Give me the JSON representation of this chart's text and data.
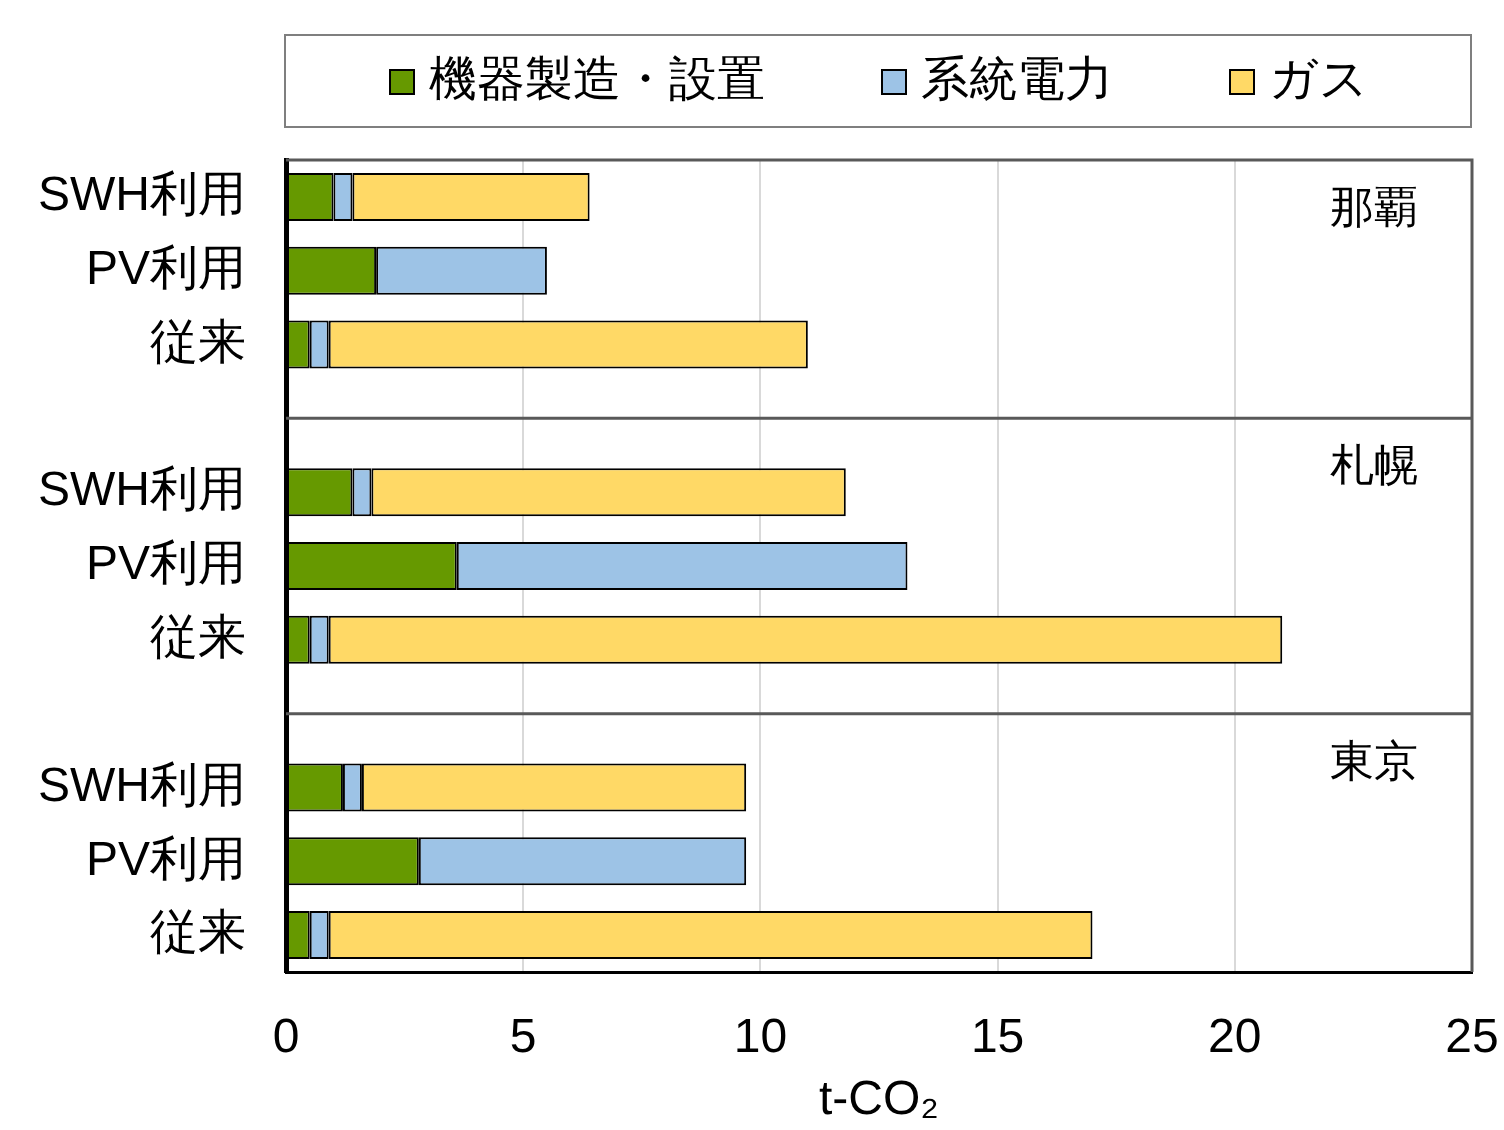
{
  "chart_data": {
    "type": "bar",
    "orientation": "horizontal",
    "stacked": true,
    "categories": [
      "SWH利用",
      "PV利用",
      "従来",
      null,
      "SWH利用",
      "PV利用",
      "従来",
      null,
      "SWH利用",
      "PV利用",
      "従来"
    ],
    "series": [
      {
        "name": "機器製造・設置",
        "color": "#669900",
        "values": [
          1.0,
          1.9,
          0.5,
          null,
          1.4,
          3.6,
          0.5,
          null,
          1.2,
          2.8,
          0.5
        ]
      },
      {
        "name": "系統電力",
        "color": "#9dc3e6",
        "values": [
          0.4,
          3.6,
          0.4,
          null,
          0.4,
          9.5,
          0.4,
          null,
          0.4,
          6.9,
          0.4
        ]
      },
      {
        "name": "ガス",
        "color": "#ffd966",
        "values": [
          5.0,
          null,
          10.1,
          null,
          10.0,
          null,
          20.1,
          null,
          8.1,
          null,
          16.1
        ]
      }
    ],
    "xlabel": "t-CO₂",
    "xlim": [
      0,
      25
    ],
    "xticks": [
      0,
      5,
      10,
      15,
      20,
      25
    ],
    "grid": "x",
    "legend": "top",
    "annotations": [
      "那覇",
      "札幌",
      "東京"
    ]
  }
}
